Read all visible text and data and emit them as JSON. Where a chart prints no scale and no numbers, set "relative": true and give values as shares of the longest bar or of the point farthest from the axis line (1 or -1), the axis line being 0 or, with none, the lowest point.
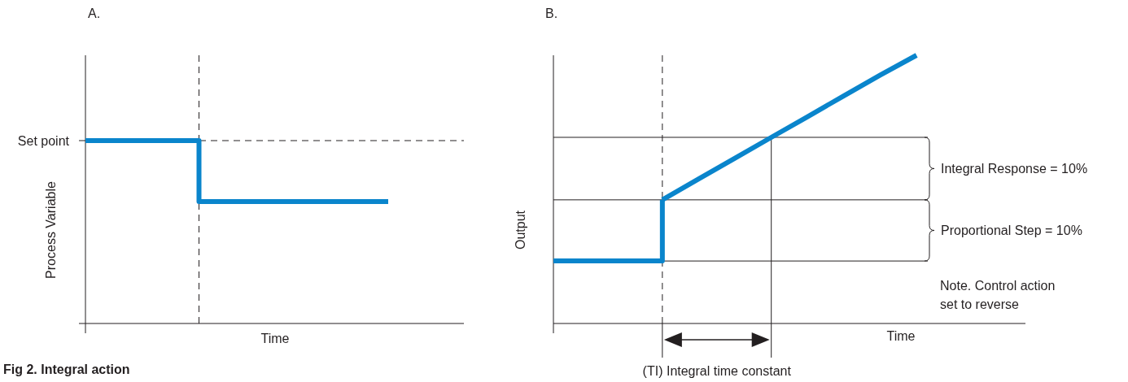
{
  "chart_data": [
    {
      "type": "step",
      "title": "A.",
      "xlabel": "Time",
      "ylabel": "Process Variable",
      "relative": true,
      "categories": [
        null,
        null,
        null,
        null,
        null,
        null,
        null,
        null,
        null,
        null,
        null
      ],
      "series": [
        {
          "color": "#0a85cc",
          "values": [
            1,
            1,
            1,
            0.667,
            0.667,
            0.667,
            0.667,
            0.667,
            0.667,
            null,
            null
          ]
        }
      ],
      "ref_lines": [
        {
          "axis": "y",
          "value": 1,
          "label": "Set point",
          "line_style": "dashed",
          "color": "#231f20"
        }
      ],
      "annotations": [
        "Fig 2. Integral action"
      ]
    },
    {
      "type": "line",
      "title": "B.",
      "xlabel": "Time",
      "ylabel": "Output",
      "relative": true,
      "categories": [
        null,
        null,
        null,
        null,
        null,
        null,
        null,
        null,
        null,
        null,
        null,
        null,
        null,
        null
      ],
      "series": [
        {
          "type": "step",
          "color": "#0a85cc",
          "values": [
            0.233,
            0.233,
            0.233,
            0.461,
            null,
            null,
            null,
            null,
            null,
            null,
            null,
            null,
            null,
            null
          ]
        },
        {
          "color": "#0a85cc",
          "values": [
            null,
            null,
            null,
            0.461,
            0.539,
            0.616,
            0.694,
            0.771,
            0.849,
            0.926,
            1,
            null,
            null,
            null
          ]
        }
      ],
      "ref_lines": [
        {
          "axis": "y",
          "value": 0.233,
          "line_style": "solid",
          "color": "#231f20"
        },
        {
          "axis": "y",
          "value": 0.461,
          "line_style": "solid",
          "color": "#231f20"
        },
        {
          "axis": "y",
          "value": 0.694,
          "line_style": "solid",
          "color": "#231f20"
        }
      ],
      "annotations": [
        "Integral Response = 10%",
        "Proportional Step = 10%",
        "(TI) Integral time constant",
        "Note. Control action set to reverse"
      ]
    }
  ]
}
